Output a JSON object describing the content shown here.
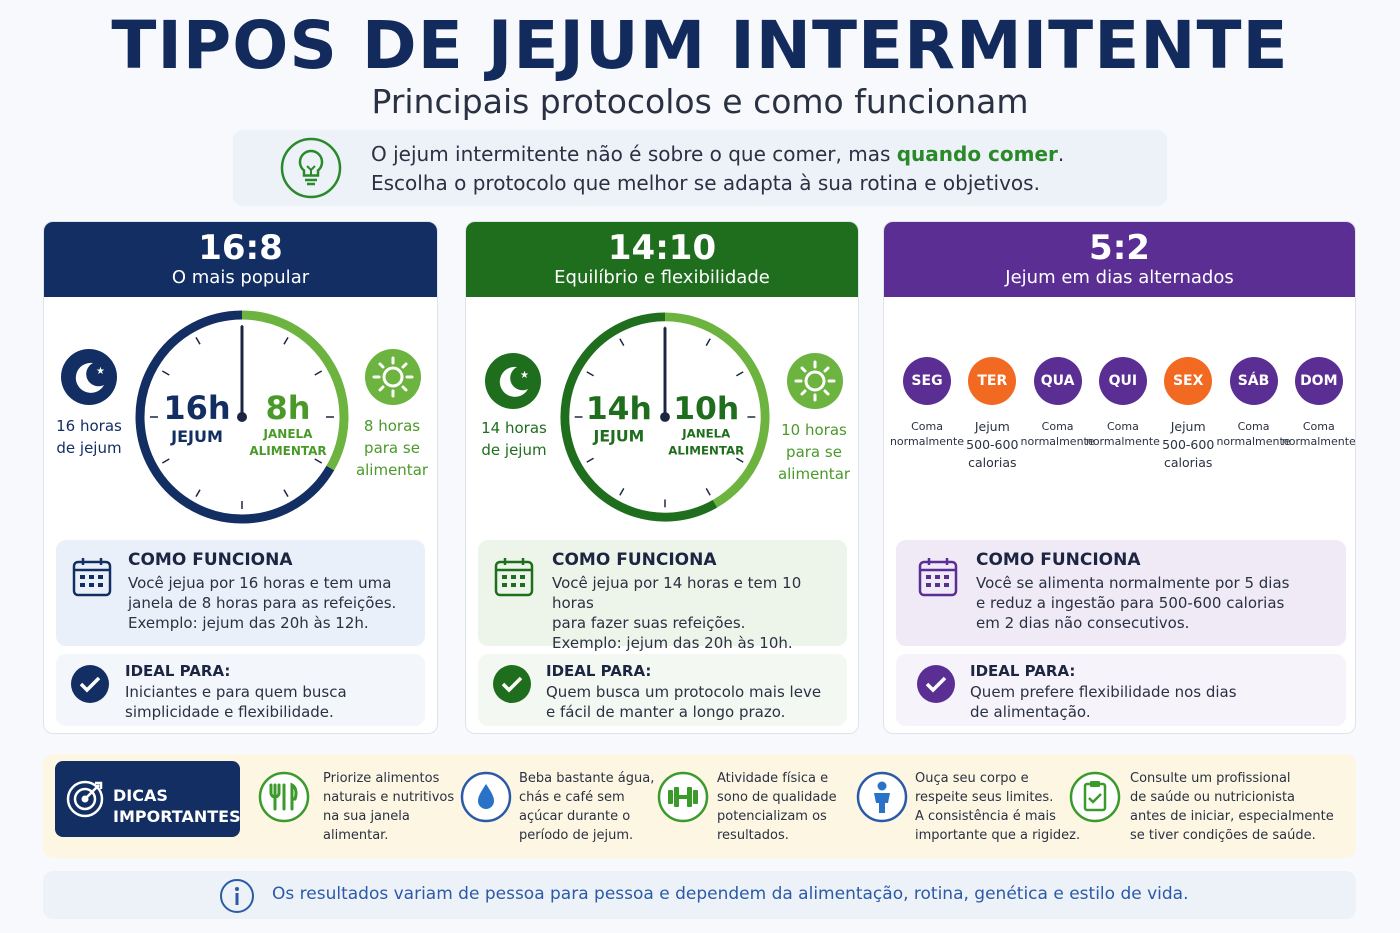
{
  "header": {
    "title": "TIPOS DE JEJUM INTERMITENTE",
    "subtitle": "Principais protocolos e como funcionam"
  },
  "intro": {
    "icon": "lightbulb-icon",
    "line1_prefix": "O jejum intermitente não é sobre o que comer, mas ",
    "line1_highlight": "quando comer",
    "line1_suffix": ".",
    "line2": "Escolha o protocolo que melhor se adapta à sua rotina e objetivos.",
    "highlight_color": "#2a8a2a"
  },
  "colors": {
    "navy": "#122e62",
    "green": "#1f6e1d",
    "lightgreen": "#6cb33f",
    "purple": "#5b2e94",
    "orange": "#f26a21"
  },
  "cards": [
    {
      "ratio": "16:8",
      "tag": "O mais popular",
      "fast_label": "16 horas\nde jejum",
      "eat_label": "8 horas\npara se\nalimentar",
      "clock_fast_hours": 16,
      "clock_eat_hours": 8,
      "clock_fast_text": "16h",
      "clock_fast_sub": "JEJUM",
      "clock_eat_text": "8h",
      "clock_eat_sub": "JANELA\nALIMENTAR",
      "how_title": "COMO FUNCIONA",
      "how_text": "Você jejua por 16 horas e tem uma\njanela de 8 horas para as refeições.\nExemplo: jejum das 20h às 12h.",
      "ideal_title": "IDEAL PARA:",
      "ideal_text": "Iniciantes e para quem busca\nsimplicidade e flexibilidade."
    },
    {
      "ratio": "14:10",
      "tag": "Equilíbrio e flexibilidade",
      "fast_label": "14 horas\nde jejum",
      "eat_label": "10 horas\npara se\nalimentar",
      "clock_fast_hours": 14,
      "clock_eat_hours": 10,
      "clock_fast_text": "14h",
      "clock_fast_sub": "JEJUM",
      "clock_eat_text": "10h",
      "clock_eat_sub": "JANELA\nALIMENTAR",
      "how_title": "COMO FUNCIONA",
      "how_text": "Você jejua por 14 horas e tem 10 horas\npara fazer suas refeições.\nExemplo: jejum das 20h às 10h.",
      "ideal_title": "IDEAL PARA:",
      "ideal_text": "Quem busca um protocolo mais leve\ne fácil de manter a longo prazo."
    },
    {
      "ratio": "5:2",
      "tag": "Jejum em dias alternados",
      "days": [
        {
          "label": "SEG",
          "type": "normal",
          "text": "Coma\nnormalmente"
        },
        {
          "label": "TER",
          "type": "fast",
          "text": "Jejum\n500-600\ncalorias"
        },
        {
          "label": "QUA",
          "type": "normal",
          "text": "Coma\nnormalmente"
        },
        {
          "label": "QUI",
          "type": "normal",
          "text": "Coma\nnormalmente"
        },
        {
          "label": "SEX",
          "type": "fast",
          "text": "Jejum\n500-600\ncalorias"
        },
        {
          "label": "SÁB",
          "type": "normal",
          "text": "Coma\nnormalmente"
        },
        {
          "label": "DOM",
          "type": "normal",
          "text": "Coma\nnormalmente"
        }
      ],
      "how_title": "COMO FUNCIONA",
      "how_text": "Você se alimenta normalmente por 5 dias\ne reduz a ingestão para 500-600 calorias\nem 2 dias não consecutivos.",
      "ideal_title": "IDEAL PARA:",
      "ideal_text": "Quem prefere flexibilidade nos dias\nde alimentação."
    }
  ],
  "tips": {
    "badge_line1": "DICAS",
    "badge_line2": "IMPORTANTES",
    "badge_icon": "target-icon",
    "items": [
      {
        "icon": "cutlery-icon",
        "text": "Priorize alimentos\nnaturais e nutritivos\nna sua janela\nalimentar."
      },
      {
        "icon": "water-drop-icon",
        "text": "Beba bastante água,\nchás e café sem\naçúcar durante o\nperíodo de jejum."
      },
      {
        "icon": "dumbbell-icon",
        "text": "Atividade física e\nsono de qualidade\npotencializam os\nresultados."
      },
      {
        "icon": "person-icon",
        "text": "Ouça seu corpo e\nrespeite seus limites.\nA consistência é mais\nimportante que a rigidez."
      },
      {
        "icon": "clipboard-check-icon",
        "text": "Consulte um profissional\nde saúde ou nutricionista\nantes de iniciar, especialmente\nse tiver condições de saúde."
      }
    ]
  },
  "note": {
    "icon": "info-icon",
    "text": "Os resultados variam de pessoa para pessoa e dependem da alimentação, rotina, genética e estilo de vida."
  }
}
